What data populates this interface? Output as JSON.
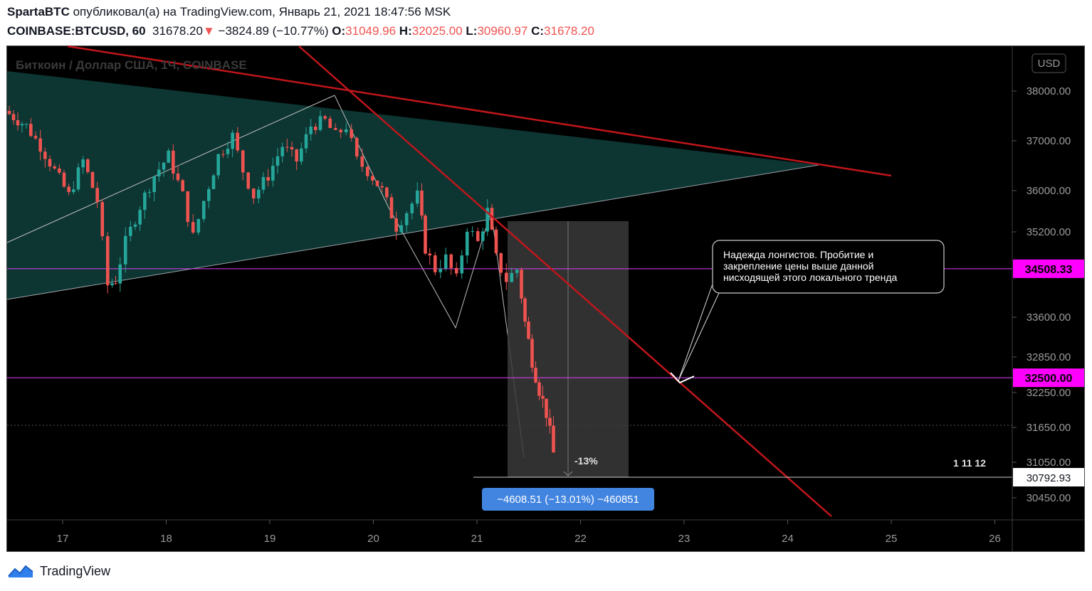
{
  "header": {
    "author": "SpartaBTC",
    "published_text": "опубликовал(а) на TradingView.com, Январь 21, 2021 18:47:56 MSK",
    "symbol": "COINBASE:BTCUSD, 60",
    "last_price": "31678.20",
    "change": "−3824.89 (−10.77%)",
    "o_label": "O:",
    "o_value": "31049.96",
    "h_label": "H:",
    "h_value": "32025.00",
    "l_label": "L:",
    "l_value": "30960.97",
    "c_label": "C:",
    "c_value": "31678.20"
  },
  "chart_data": {
    "type": "candlestick",
    "title": "Биткоин / Доллар США, 1Ч, COINBASE",
    "currency_button": "USD",
    "x_ticks": [
      "17",
      "18",
      "19",
      "20",
      "21",
      "22",
      "23",
      "24",
      "25",
      "26"
    ],
    "y_ticks": [
      "38000.00",
      "37000.00",
      "36000.00",
      "35200.00",
      "33600.00",
      "32850.00",
      "32250.00",
      "31650.00",
      "31050.00",
      "30450.00"
    ],
    "horizontal_levels": [
      {
        "label": "34508.33",
        "value": 34508.33,
        "color": "#e040fb"
      },
      {
        "label": "32500.00",
        "value": 32500.0,
        "color": "#e040fb"
      }
    ],
    "price_marker": {
      "label": "30792.93",
      "value": 30792.93
    },
    "measure": {
      "label": "−4608.51 (−13.01%) −460851",
      "pct_label": "-13%",
      "bars_label": "1 11 12"
    },
    "annotation": "Надежда лонгистов. Пробитие и закрепление цены выше данной нисходящей этого локального тренда",
    "up_color": "#26a69a",
    "down_color": "#ef5350",
    "trend_color": "#c0161b"
  },
  "footer": {
    "brand": "TradingView"
  }
}
